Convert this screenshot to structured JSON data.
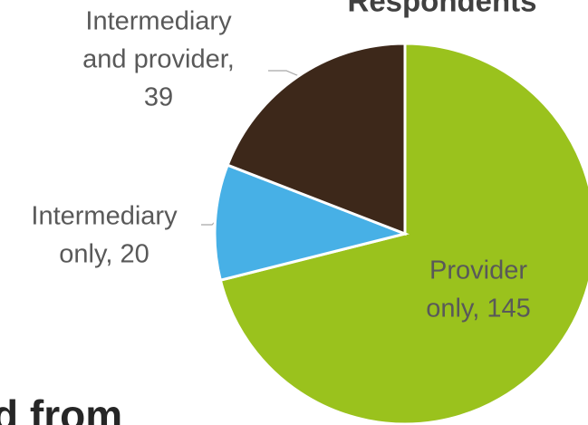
{
  "chart_data": {
    "type": "pie",
    "title": "Respondents",
    "annotation": "d from",
    "values": [
      145,
      20,
      39
    ],
    "value_labels": [
      [
        "Provider",
        "only, 145"
      ],
      [
        "Intermediary",
        "only, 20"
      ],
      [
        "Intermediary",
        "and provider,",
        "39"
      ]
    ],
    "colors": [
      "#9ac21d",
      "#47b0e6",
      "#3d281a"
    ]
  }
}
